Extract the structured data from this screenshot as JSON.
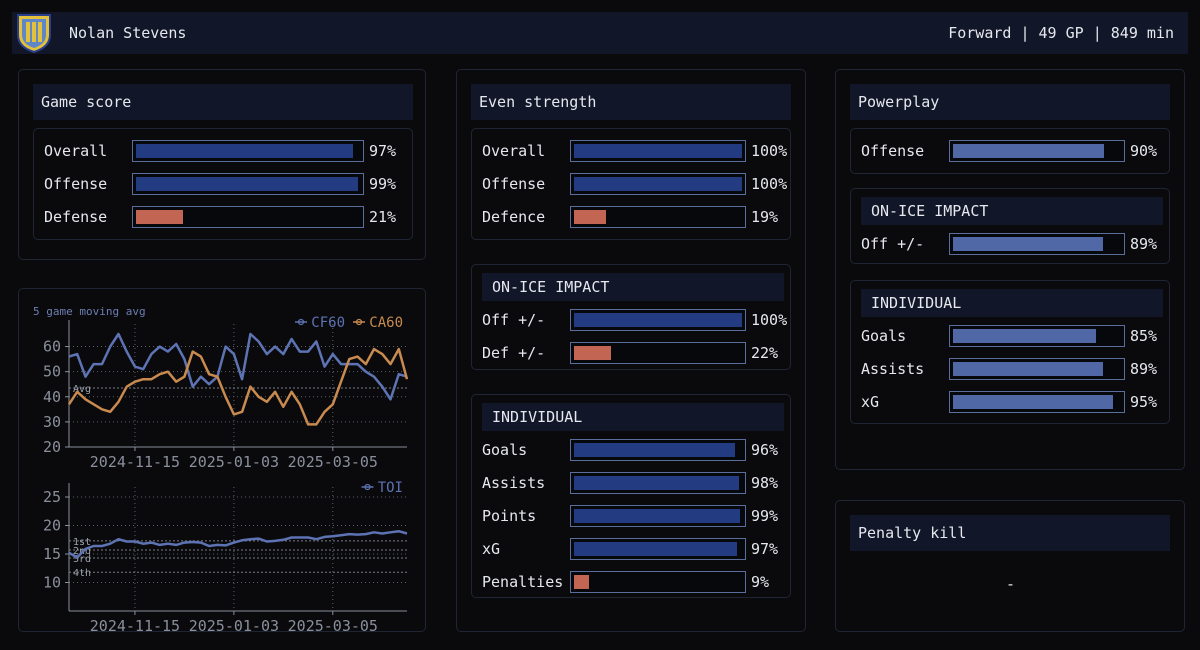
{
  "header": {
    "player_name": "Nolan Stevens",
    "player_meta": "Forward | 49 GP | 849 min"
  },
  "game_score": {
    "title": "Game score",
    "rows": [
      {
        "label": "Overall",
        "value": "97%",
        "pct": 97,
        "color": "blue"
      },
      {
        "label": "Offense",
        "value": "99%",
        "pct": 99,
        "color": "blue"
      },
      {
        "label": "Defense",
        "value": "21%",
        "pct": 21,
        "color": "red"
      }
    ]
  },
  "even_strength": {
    "title": "Even strength",
    "rows": [
      {
        "label": "Overall",
        "value": "100%",
        "pct": 100,
        "color": "blue"
      },
      {
        "label": "Offense",
        "value": "100%",
        "pct": 100,
        "color": "blue"
      },
      {
        "label": "Defence",
        "value": "19%",
        "pct": 19,
        "color": "red"
      }
    ],
    "impact_title": "ON-ICE IMPACT",
    "impact_rows": [
      {
        "label": "Off +/-",
        "value": "100%",
        "pct": 100,
        "color": "blue"
      },
      {
        "label": "Def +/-",
        "value": "22%",
        "pct": 22,
        "color": "red"
      }
    ],
    "individual_title": "INDIVIDUAL",
    "individual_rows": [
      {
        "label": "Goals",
        "value": "96%",
        "pct": 96,
        "color": "blue"
      },
      {
        "label": "Assists",
        "value": "98%",
        "pct": 98,
        "color": "blue"
      },
      {
        "label": "Points",
        "value": "99%",
        "pct": 99,
        "color": "blue"
      },
      {
        "label": "xG",
        "value": "97%",
        "pct": 97,
        "color": "blue"
      },
      {
        "label": "Penalties",
        "value": "9%",
        "pct": 9,
        "color": "red"
      }
    ]
  },
  "powerplay": {
    "title": "Powerplay",
    "rows": [
      {
        "label": "Offense",
        "value": "90%",
        "pct": 90,
        "color": "light"
      }
    ],
    "impact_title": "ON-ICE IMPACT",
    "impact_rows": [
      {
        "label": "Off +/-",
        "value": "89%",
        "pct": 89,
        "color": "light"
      }
    ],
    "individual_title": "INDIVIDUAL",
    "individual_rows": [
      {
        "label": "Goals",
        "value": "85%",
        "pct": 85,
        "color": "light"
      },
      {
        "label": "Assists",
        "value": "89%",
        "pct": 89,
        "color": "light"
      },
      {
        "label": "xG",
        "value": "95%",
        "pct": 95,
        "color": "light"
      }
    ]
  },
  "penalty_kill": {
    "title": "Penalty kill",
    "value": "-"
  },
  "colors": {
    "cf60": "#5d73b3",
    "ca60": "#c98a4f",
    "toi": "#5d73b3",
    "grid": "#5a5f6e",
    "axis_text": "#8a8f9c"
  },
  "chart_data": [
    {
      "type": "line",
      "title": "5 game moving avg",
      "xlabel": "",
      "ylabel": "",
      "ylim": [
        20,
        65
      ],
      "yticks": [
        20,
        30,
        40,
        50,
        60
      ],
      "xtick_labels": [
        "2024-11-15",
        "2025-01-03",
        "2025-03-05"
      ],
      "xtick_index": [
        8,
        20,
        32
      ],
      "reference_line": {
        "label": "Avg",
        "value": 43.5
      },
      "legend": "top-right",
      "series": [
        {
          "name": "CF60",
          "color_key": "cf60",
          "values": [
            56,
            57,
            48,
            53,
            53,
            60,
            65,
            58,
            52,
            51,
            57,
            60,
            58,
            61,
            55,
            44,
            48,
            45,
            48,
            60,
            57,
            47,
            65,
            62,
            57,
            60,
            57,
            63,
            58,
            58,
            62,
            52,
            57,
            53,
            53,
            53,
            50,
            48,
            44,
            39,
            49,
            48
          ]
        },
        {
          "name": "CA60",
          "color_key": "ca60",
          "values": [
            37,
            42,
            39,
            37,
            35,
            34,
            38,
            44,
            46,
            47,
            47,
            49,
            50,
            46,
            48,
            58,
            56,
            49,
            48,
            40,
            33,
            34,
            44,
            40,
            38,
            42,
            36,
            42,
            37,
            29,
            29,
            34,
            37,
            46,
            55,
            56,
            53,
            59,
            57,
            53,
            59,
            47
          ]
        }
      ]
    },
    {
      "type": "line",
      "title": "",
      "xlabel": "",
      "ylabel": "",
      "ylim": [
        5,
        25
      ],
      "yticks": [
        10,
        15,
        20,
        25
      ],
      "xtick_labels": [
        "2024-11-15",
        "2025-01-03",
        "2025-03-05"
      ],
      "xtick_index": [
        8,
        20,
        32
      ],
      "reference_lines": [
        {
          "label": "1st",
          "value": 17.3
        },
        {
          "label": "2nd",
          "value": 15.7
        },
        {
          "label": "3rd",
          "value": 14.3
        },
        {
          "label": "4th",
          "value": 11.8
        }
      ],
      "legend": "top-right",
      "series": [
        {
          "name": "TOI",
          "color_key": "toi",
          "values": [
            15.2,
            14.4,
            15.9,
            16.4,
            16.4,
            16.8,
            17.6,
            17.2,
            17.2,
            16.8,
            17.0,
            16.6,
            16.8,
            16.6,
            17.0,
            17.1,
            17.0,
            16.4,
            16.6,
            16.5,
            17.0,
            17.4,
            17.6,
            17.7,
            17.2,
            17.3,
            17.5,
            17.9,
            17.9,
            17.9,
            17.6,
            18.0,
            18.1,
            18.3,
            18.5,
            18.4,
            18.5,
            18.8,
            18.6,
            18.8,
            19.0,
            18.6
          ]
        }
      ]
    }
  ]
}
